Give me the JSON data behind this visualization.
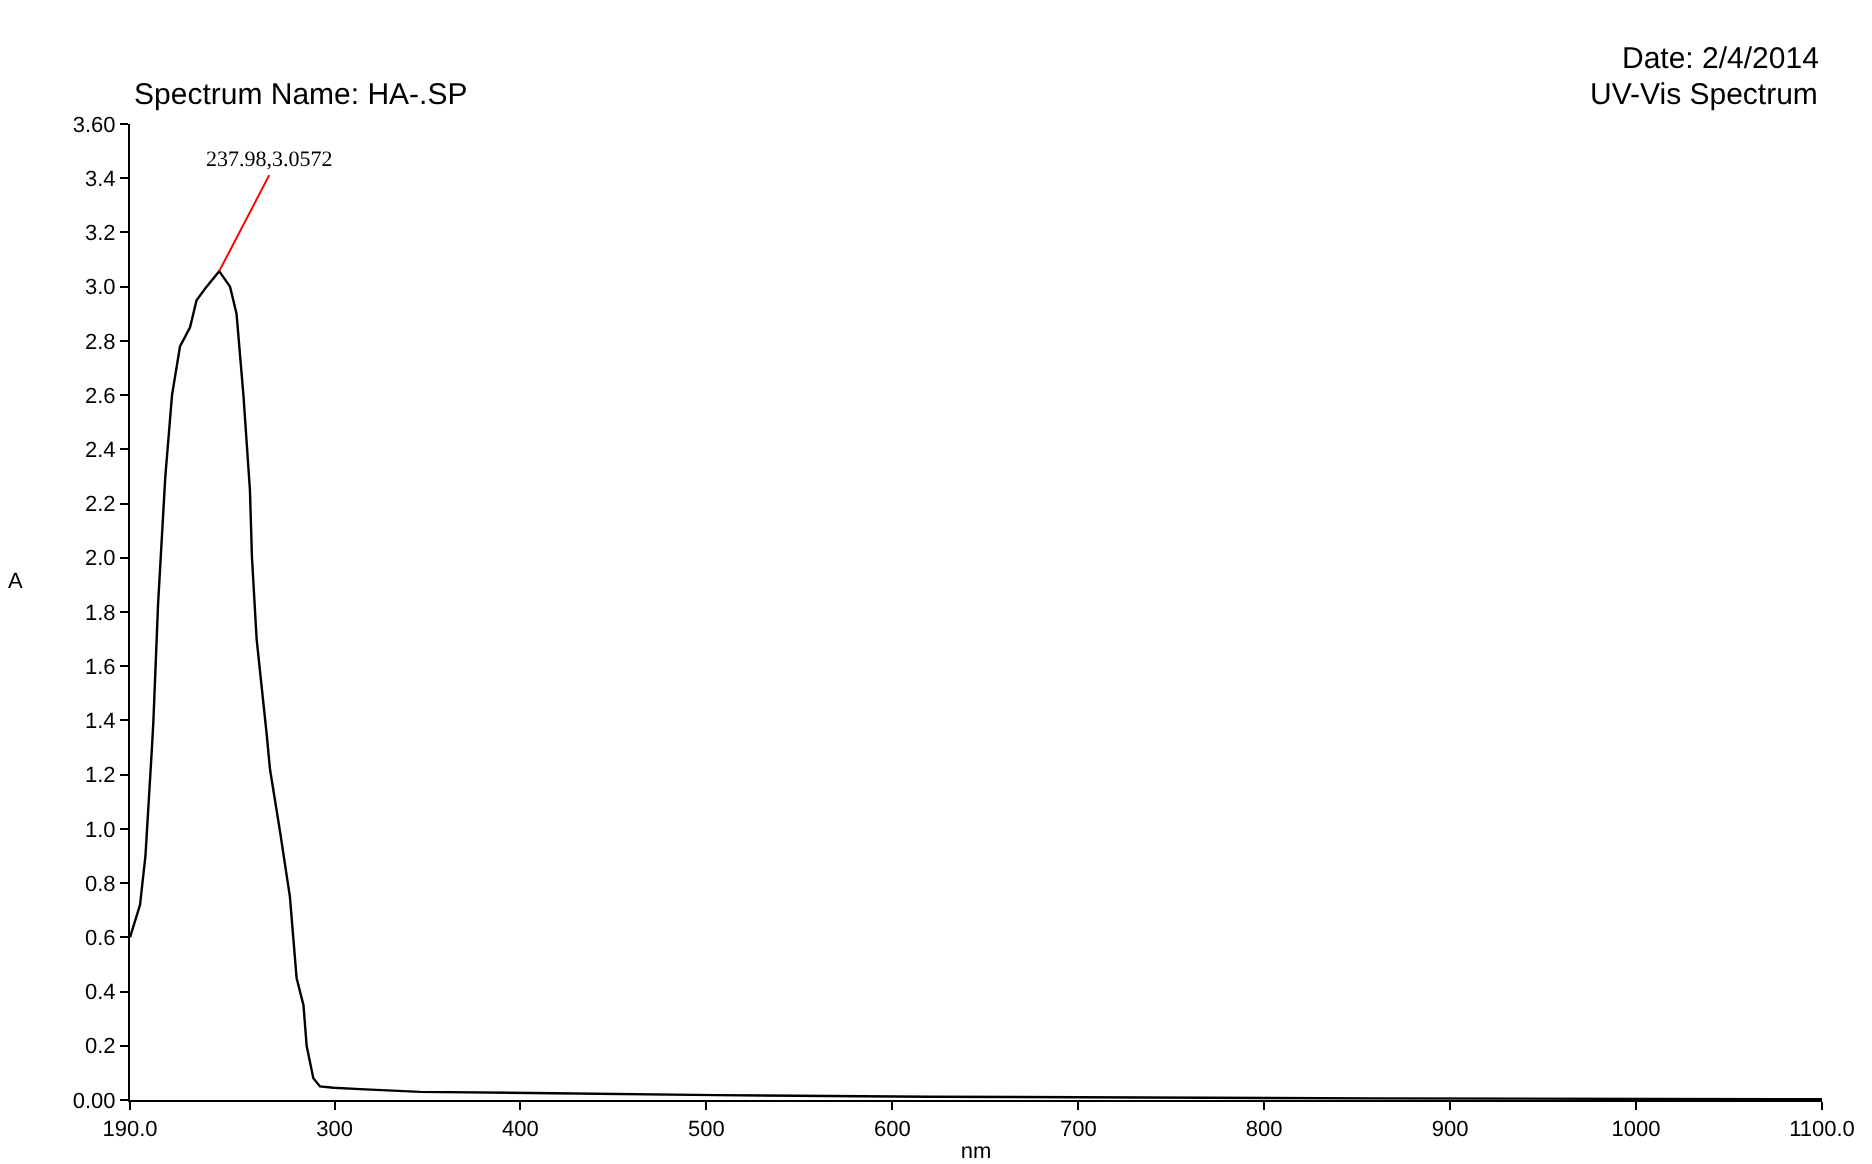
{
  "chart_data": {
    "type": "line",
    "title": "Spectrum Name: HA-.SP",
    "subtitle": "UV-Vis Spectrum",
    "xlabel": "nm",
    "ylabel": "A",
    "annotations": [
      "Date: 2/4/2014",
      {
        "text": "237.98,3.0572",
        "x": 237.98,
        "y": 3.0572
      }
    ],
    "series": [
      {
        "color": "#000000",
        "x": [
          190,
          195.4,
          198.3,
          201.8,
          202.6,
          205.1,
          209,
          212.6,
          216.9,
          222.3,
          225.8,
          231.2,
          237.98,
          243.8,
          247.3,
          251,
          254.5,
          255.6,
          258.1,
          263.5,
          265.3,
          270.7,
          276,
          279.6,
          283.3,
          285,
          288.6,
          292.2,
          299.4,
          313.7,
          346,
          417.7,
          505,
          620,
          860,
          1100
        ],
        "values": [
          0.6,
          0.72,
          0.9,
          1.3,
          1.4,
          1.83,
          2.3,
          2.6,
          2.78,
          2.85,
          2.95,
          3.0,
          3.0572,
          3.0,
          2.9,
          2.6,
          2.25,
          2.0,
          1.7,
          1.35,
          1.22,
          0.99,
          0.75,
          0.45,
          0.35,
          0.2,
          0.08,
          0.05,
          0.045,
          0.04,
          0.03,
          0.025,
          0.018,
          0.012,
          0.006,
          0.003
        ]
      }
    ],
    "xlim": [
      190,
      1100
    ],
    "xticks": [
      {
        "value": 190,
        "label": "190.0"
      },
      300,
      400,
      500,
      600,
      700,
      800,
      900,
      1000,
      {
        "value": 1100,
        "label": "1100.0"
      }
    ],
    "ylim": [
      0,
      3.6
    ],
    "yticks": [
      {
        "value": 0,
        "label": "0.00"
      },
      0.2,
      0.4,
      0.6,
      0.8,
      {
        "value": 1,
        "label": "1.0"
      },
      1.2,
      1.4,
      1.6,
      1.8,
      {
        "value": 2,
        "label": "2.0"
      },
      2.2,
      2.4,
      2.6,
      2.8,
      {
        "value": 3,
        "label": "3.0"
      },
      3.2,
      3.4,
      {
        "value": 3.6,
        "label": "3.60"
      }
    ],
    "grid": false,
    "marker": "none",
    "line_style": "solid"
  }
}
